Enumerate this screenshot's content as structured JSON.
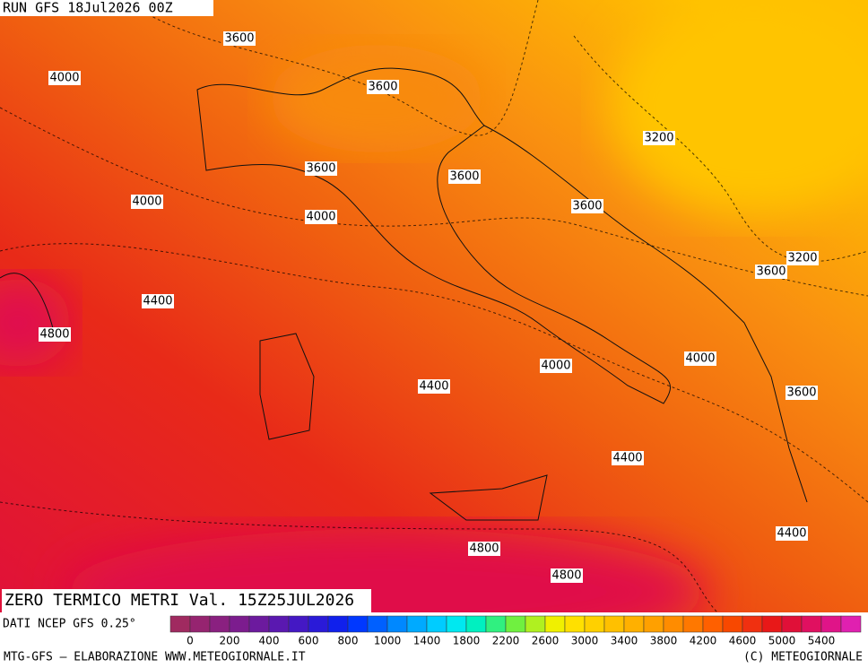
{
  "header": {
    "run": "RUN GFS 18Jul2026 00Z"
  },
  "map": {
    "contour_labels": [
      3600,
      4000,
      3600,
      3200,
      3600,
      3600,
      4000,
      4000,
      3600,
      3200,
      3600,
      4400,
      4800,
      4000,
      4000,
      4400,
      3600,
      4400,
      4800,
      4400,
      4800
    ]
  },
  "footer": {
    "title": "ZERO TERMICO METRI Val. 15Z25JUL2026",
    "source": "DATI NCEP GFS 0.25°",
    "credit": "MTG-GFS — ELABORAZIONE WWW.METEOGIORNALE.IT",
    "copyright": "(C) METEOGIORNALE"
  },
  "colorbar": {
    "ticks": [
      0,
      200,
      400,
      600,
      800,
      1000,
      1400,
      1800,
      2200,
      2600,
      3000,
      3400,
      3800,
      4200,
      4600,
      5000,
      5400
    ],
    "colors": [
      "#a02a60",
      "#962470",
      "#8a2080",
      "#7c1c8e",
      "#6c1a9e",
      "#5a18b0",
      "#4418c4",
      "#2a1ad8",
      "#1020ec",
      "#0038ff",
      "#0060ff",
      "#0088ff",
      "#00aaff",
      "#00ccff",
      "#00e8f0",
      "#00f0c0",
      "#30f080",
      "#70f040",
      "#b0f020",
      "#f0f000",
      "#ffe000",
      "#ffd000",
      "#ffc000",
      "#ffb000",
      "#ffa000",
      "#ff8c00",
      "#ff7800",
      "#ff6000",
      "#f84800",
      "#f03010",
      "#e81818",
      "#e01038",
      "#e01060",
      "#e01488",
      "#e020b0"
    ]
  }
}
